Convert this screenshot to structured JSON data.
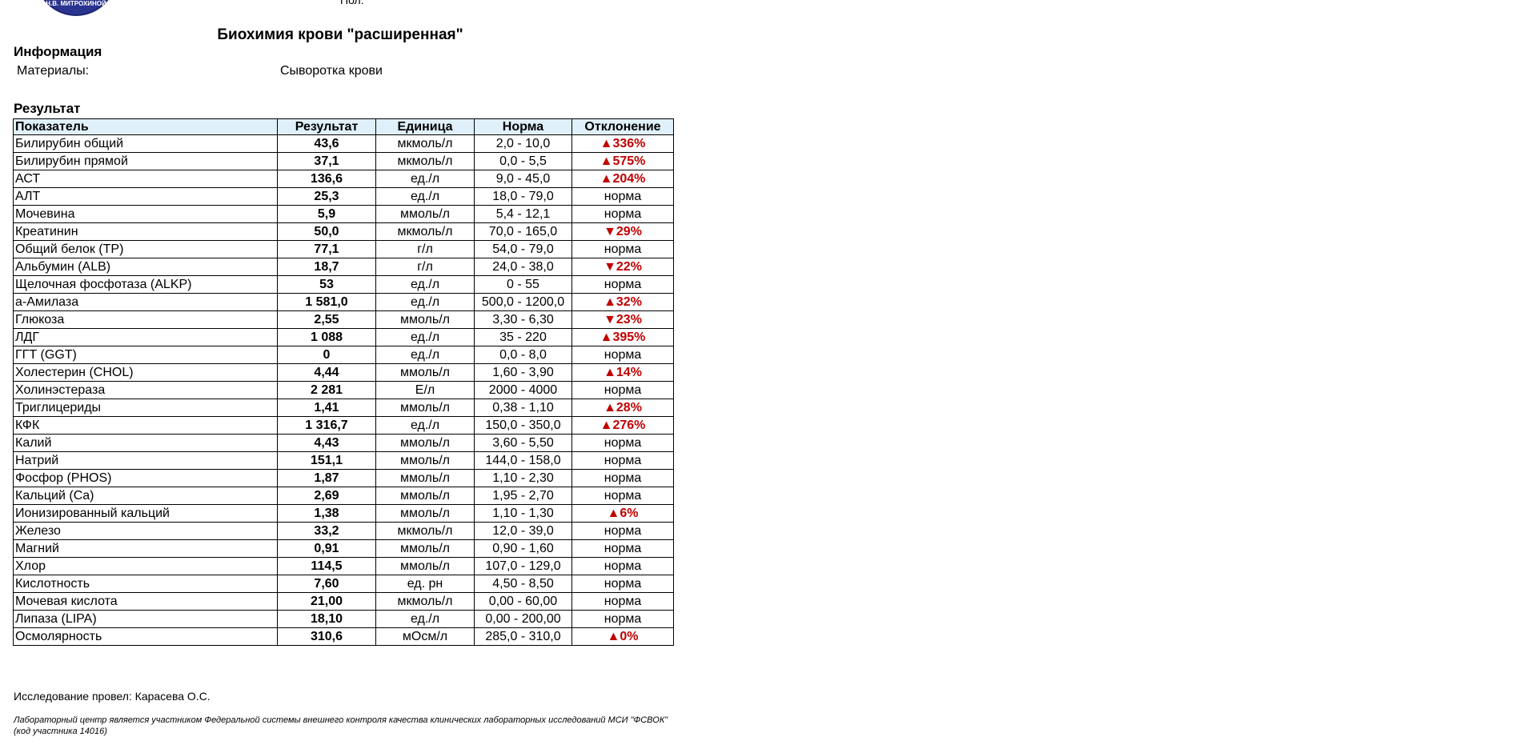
{
  "header": {
    "logo_text": "Н.В. МИТРОХИНОЙ",
    "sex_label": "Пол:"
  },
  "title": "Биохимия крови \"расширенная\"",
  "info": {
    "heading": "Информация",
    "materials_label": "Материалы:",
    "materials_value": "Сыворотка крови"
  },
  "results": {
    "heading": "Результат",
    "columns": [
      "Показатель",
      "Результат",
      "Единица",
      "Норма",
      "Отклонение"
    ],
    "accent_color": "#c00000",
    "rows": [
      {
        "name": "Билирубин общий",
        "value": "43,6",
        "unit": "мкмоль/л",
        "norm": "2,0 - 10,0",
        "dev": "▲336%",
        "status": "hi"
      },
      {
        "name": "Билирубин прямой",
        "value": "37,1",
        "unit": "мкмоль/л",
        "norm": "0,0 - 5,5",
        "dev": "▲575%",
        "status": "hi"
      },
      {
        "name": "АСТ",
        "value": "136,6",
        "unit": "ед./л",
        "norm": "9,0 - 45,0",
        "dev": "▲204%",
        "status": "hi"
      },
      {
        "name": "АЛТ",
        "value": "25,3",
        "unit": "ед./л",
        "norm": "18,0 - 79,0",
        "dev": "норма",
        "status": "ok"
      },
      {
        "name": "Мочевина",
        "value": "5,9",
        "unit": "ммоль/л",
        "norm": "5,4 - 12,1",
        "dev": "норма",
        "status": "ok"
      },
      {
        "name": "Креатинин",
        "value": "50,0",
        "unit": "мкмоль/л",
        "norm": "70,0 - 165,0",
        "dev": "▼29%",
        "status": "lo"
      },
      {
        "name": "Общий белок (TP)",
        "value": "77,1",
        "unit": "г/л",
        "norm": "54,0 - 79,0",
        "dev": "норма",
        "status": "ok"
      },
      {
        "name": "Альбумин (ALB)",
        "value": "18,7",
        "unit": "г/л",
        "norm": "24,0 - 38,0",
        "dev": "▼22%",
        "status": "lo"
      },
      {
        "name": "Щелочная фосфотаза (ALKP)",
        "value": "53",
        "unit": "ед./л",
        "norm": "0 - 55",
        "dev": "норма",
        "status": "ok"
      },
      {
        "name": "а-Амилаза",
        "value": "1 581,0",
        "unit": "ед./л",
        "norm": "500,0 - 1200,0",
        "dev": "▲32%",
        "status": "hi",
        "wrap": true
      },
      {
        "name": "Глюкоза",
        "value": "2,55",
        "unit": "ммоль/л",
        "norm": "3,30 - 6,30",
        "dev": "▼23%",
        "status": "lo"
      },
      {
        "name": "ЛДГ",
        "value": "1 088",
        "unit": "ед./л",
        "norm": "35 - 220",
        "dev": "▲395%",
        "status": "hi"
      },
      {
        "name": "ГГТ (GGT)",
        "value": "0",
        "unit": "ед./л",
        "norm": "0,0 - 8,0",
        "dev": "норма",
        "status": "ok"
      },
      {
        "name": "Холестерин (CHOL)",
        "value": "4,44",
        "unit": "ммоль/л",
        "norm": "1,60 - 3,90",
        "dev": "▲14%",
        "status": "hi"
      },
      {
        "name": "Холинэстераза",
        "value": "2 281",
        "unit": "Е/л",
        "norm": "2000 - 4000",
        "dev": "норма",
        "status": "ok"
      },
      {
        "name": "Триглицериды",
        "value": "1,41",
        "unit": "ммоль/л",
        "norm": "0,38 - 1,10",
        "dev": "▲28%",
        "status": "hi"
      },
      {
        "name": "КФК",
        "value": "1 316,7",
        "unit": "ед./л",
        "norm": "150,0 - 350,0",
        "dev": "▲276%",
        "status": "hi"
      },
      {
        "name": "Калий",
        "value": "4,43",
        "unit": "ммоль/л",
        "norm": "3,60 - 5,50",
        "dev": "норма",
        "status": "ok"
      },
      {
        "name": "Натрий",
        "value": "151,1",
        "unit": "ммоль/л",
        "norm": "144,0 - 158,0",
        "dev": "норма",
        "status": "ok"
      },
      {
        "name": "Фосфор (PHOS)",
        "value": "1,87",
        "unit": "ммоль/л",
        "norm": "1,10 - 2,30",
        "dev": "норма",
        "status": "ok"
      },
      {
        "name": "Кальций (Ca)",
        "value": "2,69",
        "unit": "ммоль/л",
        "norm": "1,95 - 2,70",
        "dev": "норма",
        "status": "ok"
      },
      {
        "name": "Ионизированный кальций",
        "value": "1,38",
        "unit": "ммоль/л",
        "norm": "1,10 - 1,30",
        "dev": "▲6%",
        "status": "hi"
      },
      {
        "name": "Железо",
        "value": "33,2",
        "unit": "мкмоль/л",
        "norm": "12,0 - 39,0",
        "dev": "норма",
        "status": "ok"
      },
      {
        "name": "Магний",
        "value": "0,91",
        "unit": "ммоль/л",
        "norm": "0,90 - 1,60",
        "dev": "норма",
        "status": "ok"
      },
      {
        "name": "Хлор",
        "value": "114,5",
        "unit": "ммоль/л",
        "norm": "107,0 - 129,0",
        "dev": "норма",
        "status": "ok"
      },
      {
        "name": "Кислотность",
        "value": "7,60",
        "unit": "ед. рн",
        "norm": "4,50 - 8,50",
        "dev": "норма",
        "status": "ok"
      },
      {
        "name": "Мочевая кислота",
        "value": "21,00",
        "unit": "мкмоль/л",
        "norm": "0,00 - 60,00",
        "dev": "норма",
        "status": "ok"
      },
      {
        "name": "Липаза (LIPA)",
        "value": "18,10",
        "unit": "ед./л",
        "norm": "0,00 - 200,00",
        "dev": "норма",
        "status": "ok"
      },
      {
        "name": "Осмолярность",
        "value": "310,6",
        "unit": "мОсм/л",
        "norm": "285,0 - 310,0",
        "dev": "▲0%",
        "status": "hi"
      }
    ]
  },
  "footer": {
    "performer": "Исследование провел: Карасева О.С.",
    "note": "Лабораторный центр является участником Федеральной системы внешнего контроля качества клинических лабораторных исследований МСИ \"ФСВОК\" (код участника 14016)"
  }
}
